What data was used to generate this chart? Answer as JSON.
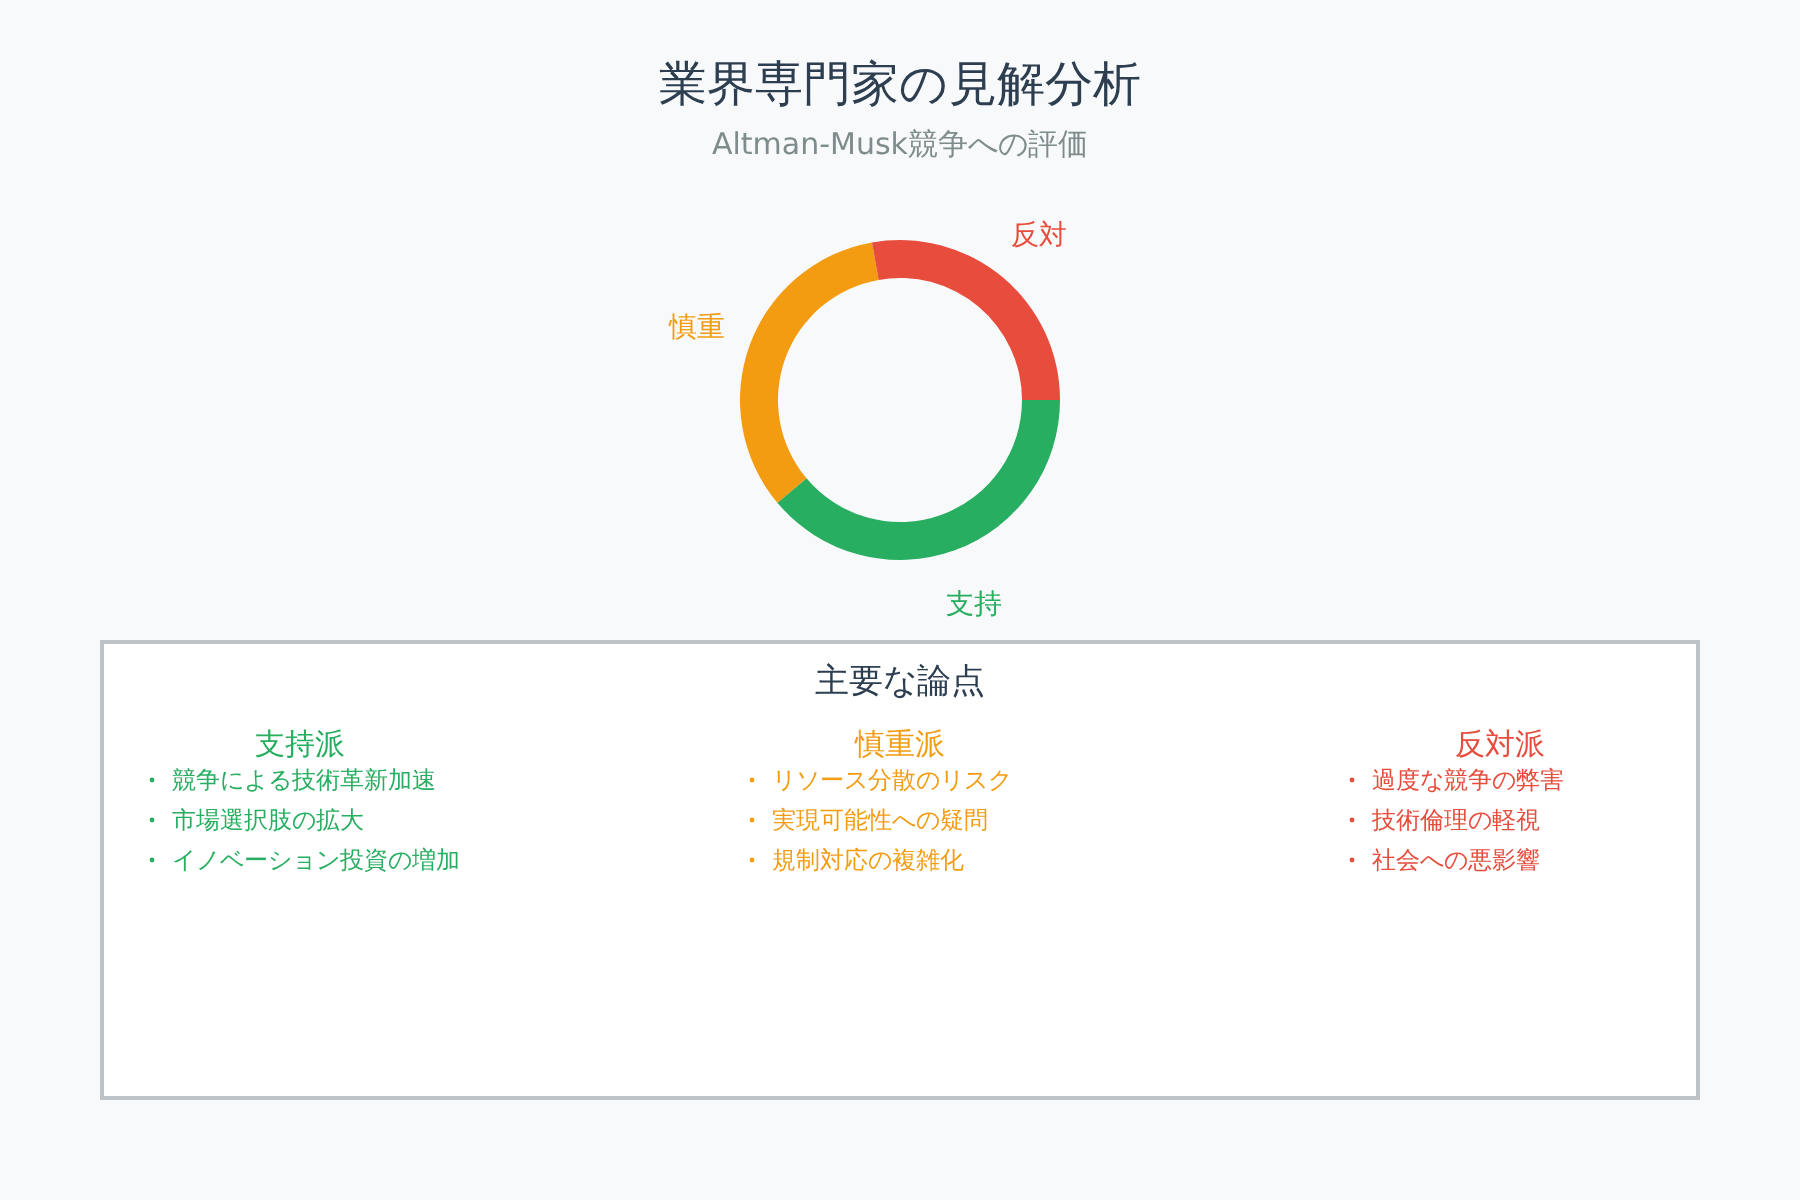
{
  "chart_data": [
    {
      "type": "donut",
      "title": "業界専門家の見解分析",
      "subtitle": "Altman-Musk競争への評価",
      "categories": [
        "支持",
        "慎重",
        "反対"
      ],
      "values": [
        38.9,
        33.3,
        27.8
      ],
      "colors": [
        "#27ae60",
        "#f39c12",
        "#e74c3c"
      ]
    },
    {
      "type": "other",
      "title": "主要な論点",
      "categories": [
        "支持派",
        "慎重派",
        "反対派"
      ],
      "annotations": [
        "競争による技術革新加速",
        "市場選択肢の拡大",
        "イノベーション投資の増加",
        "リソース分散のリスク",
        "実現可能性への疑問",
        "規制対応の複雑化",
        "過度な競争の弊害",
        "技術倫理の軽視",
        "社会への悪影響"
      ]
    }
  ]
}
